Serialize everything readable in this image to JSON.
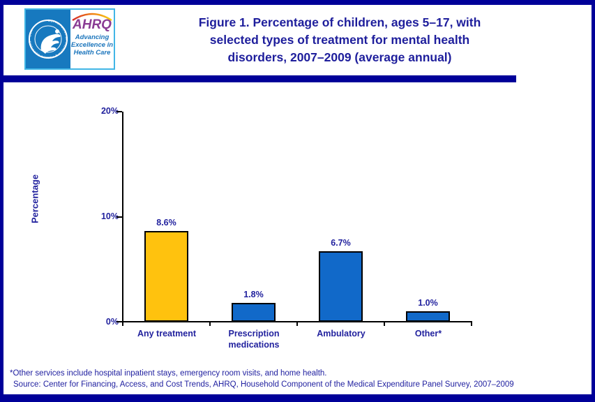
{
  "header": {
    "logo": {
      "seal_label": "DEPARTMENT OF HEALTH & HUMAN SERVICES • USA",
      "ahrq_text": "AHRQ",
      "tagline_lines": [
        "Advancing",
        "Excellence in",
        "Health Care"
      ]
    },
    "title_lines": [
      "Figure 1. Percentage of children, ages 5–17, with",
      "selected types of treatment for mental health",
      "disorders, 2007–2009 (average annual)"
    ]
  },
  "chart_data": {
    "type": "bar",
    "title": "Figure 1. Percentage of children, ages 5–17, with selected types of treatment for mental health disorders, 2007–2009 (average annual)",
    "categories": [
      "Any treatment",
      "Prescription medications",
      "Ambulatory",
      "Other*"
    ],
    "values": [
      8.6,
      1.8,
      6.7,
      1.0
    ],
    "value_labels": [
      "8.6%",
      "1.8%",
      "6.7%",
      "1.0%"
    ],
    "bar_colors": [
      "#FFC20E",
      "#1169C9",
      "#1169C9",
      "#1169C9"
    ],
    "xlabel": "",
    "ylabel": "Percentage",
    "ylim": [
      0,
      20
    ],
    "yticks": [
      "0%",
      "10%",
      "20%"
    ],
    "grid": false,
    "legend": "none"
  },
  "footnotes": {
    "line1": "*Other services include hospital inpatient stays, emergency room visits, and home health.",
    "line2": "Source: Center for Financing, Access, and Cost Trends, AHRQ, Household Component of the Medical Expenditure Panel Survey, 2007–2009"
  },
  "colors": {
    "frame_navy": "#000099",
    "text_navy": "#22229E",
    "gold_bar": "#FFC20E",
    "blue_bar": "#1169C9",
    "ahrq_purple": "#8A3C94",
    "logo_blue": "#1779BF"
  }
}
